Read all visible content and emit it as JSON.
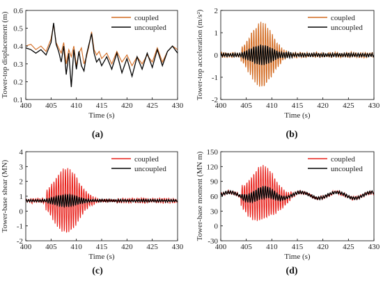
{
  "chart_data": [
    {
      "id": "a",
      "type": "line",
      "panel_label": "(a)",
      "xlabel": "Time (s)",
      "ylabel": "Tower-top displacement (m)",
      "xlim": [
        400,
        430
      ],
      "ylim": [
        0.1,
        0.6
      ],
      "xticks": [
        "400",
        "405",
        "410",
        "415",
        "420",
        "425",
        "430"
      ],
      "yticks": [
        "0.1",
        "0.2",
        "0.3",
        "0.4",
        "0.5",
        "0.6"
      ],
      "legend_position": "top-right",
      "series": [
        {
          "name": "coupled",
          "color": "#d2691e",
          "x": [
            400,
            401,
            402,
            403,
            404,
            405,
            405.5,
            406,
            406.5,
            407,
            407.5,
            408,
            408.5,
            409,
            409.5,
            410,
            410.5,
            411,
            411.5,
            412,
            412.5,
            413,
            413.5,
            414,
            414.5,
            415,
            416,
            417,
            418,
            419,
            420,
            421,
            422,
            423,
            424,
            425,
            426,
            427,
            428,
            429,
            430
          ],
          "y": [
            0.4,
            0.41,
            0.38,
            0.4,
            0.37,
            0.44,
            0.52,
            0.42,
            0.39,
            0.36,
            0.42,
            0.3,
            0.38,
            0.34,
            0.4,
            0.29,
            0.36,
            0.39,
            0.3,
            0.34,
            0.4,
            0.48,
            0.38,
            0.35,
            0.37,
            0.33,
            0.36,
            0.3,
            0.37,
            0.31,
            0.35,
            0.29,
            0.34,
            0.3,
            0.35,
            0.31,
            0.39,
            0.31,
            0.37,
            0.4,
            0.38
          ]
        },
        {
          "name": "uncoupled",
          "color": "#000000",
          "x": [
            400,
            401,
            402,
            403,
            404,
            405,
            405.5,
            406,
            406.5,
            407,
            407.5,
            408,
            408.5,
            409,
            409.5,
            410,
            410.5,
            411,
            411.5,
            412,
            412.5,
            413,
            413.5,
            414,
            414.5,
            415,
            416,
            417,
            418,
            419,
            420,
            421,
            422,
            423,
            424,
            425,
            426,
            427,
            428,
            429,
            430
          ],
          "y": [
            0.39,
            0.38,
            0.36,
            0.38,
            0.35,
            0.42,
            0.53,
            0.41,
            0.37,
            0.31,
            0.4,
            0.24,
            0.36,
            0.17,
            0.38,
            0.27,
            0.37,
            0.29,
            0.26,
            0.35,
            0.41,
            0.47,
            0.36,
            0.31,
            0.33,
            0.29,
            0.34,
            0.27,
            0.36,
            0.25,
            0.33,
            0.23,
            0.34,
            0.27,
            0.36,
            0.28,
            0.38,
            0.29,
            0.37,
            0.4,
            0.36
          ]
        }
      ]
    },
    {
      "id": "b",
      "type": "line",
      "panel_label": "(b)",
      "xlabel": "Time (s)",
      "ylabel": "Tower-top acceleration (m/s²)",
      "xlim": [
        400,
        430
      ],
      "ylim": [
        -2,
        2
      ],
      "xticks": [
        "400",
        "405",
        "410",
        "415",
        "420",
        "425",
        "430"
      ],
      "yticks": [
        "-2",
        "-1",
        "0",
        "1",
        "2"
      ],
      "legend_position": "top-right",
      "series": [
        {
          "name": "coupled",
          "color": "#d2691e"
        },
        {
          "name": "uncoupled",
          "color": "#000000"
        }
      ]
    },
    {
      "id": "c",
      "type": "line",
      "panel_label": "(c)",
      "xlabel": "Time (s)",
      "ylabel": "Tower-base shear (MN)",
      "xlim": [
        400,
        430
      ],
      "ylim": [
        -2,
        4
      ],
      "xticks": [
        "400",
        "405",
        "410",
        "415",
        "420",
        "425",
        "430"
      ],
      "yticks": [
        "-2",
        "-1",
        "0",
        "1",
        "2",
        "3",
        "4"
      ],
      "legend_position": "top-right",
      "series": [
        {
          "name": "coupled",
          "color": "#e8201a"
        },
        {
          "name": "uncoupled",
          "color": "#000000"
        }
      ]
    },
    {
      "id": "d",
      "type": "line",
      "panel_label": "(d)",
      "xlabel": "Time (s)",
      "ylabel": "Tower-base moment (MN m)",
      "xlim": [
        400,
        430
      ],
      "ylim": [
        -30,
        150
      ],
      "xticks": [
        "400",
        "405",
        "410",
        "415",
        "420",
        "425",
        "430"
      ],
      "yticks": [
        "-30",
        "0",
        "30",
        "60",
        "90",
        "120",
        "150"
      ],
      "legend_position": "top-right",
      "series": [
        {
          "name": "coupled",
          "color": "#e8201a"
        },
        {
          "name": "uncoupled",
          "color": "#000000"
        }
      ]
    }
  ]
}
